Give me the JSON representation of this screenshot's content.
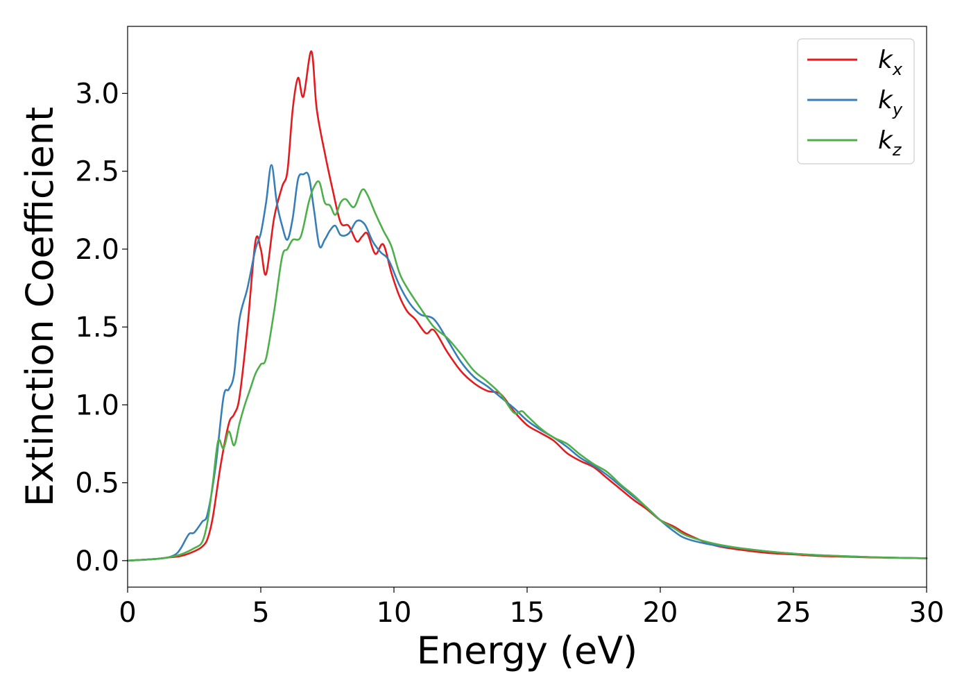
{
  "chart_data": {
    "type": "line",
    "xlabel": "Energy (eV)",
    "ylabel": "Extinction Coefficient",
    "xlim": [
      0,
      30
    ],
    "ylim": [
      -0.17,
      3.43
    ],
    "xticks": [
      "0",
      "5",
      "10",
      "15",
      "20",
      "25",
      "30"
    ],
    "xtick_values": [
      0,
      5,
      10,
      15,
      20,
      25,
      30
    ],
    "yticks": [
      "0.0",
      "0.5",
      "1.0",
      "1.5",
      "2.0",
      "2.5",
      "3.0"
    ],
    "ytick_values": [
      0,
      0.5,
      1.0,
      1.5,
      2.0,
      2.5,
      3.0
    ],
    "grid": false,
    "legend_position": "top-right",
    "series": [
      {
        "name": "k",
        "subscript": "x",
        "color": "#e41a1c",
        "x": [
          0,
          1,
          1.5,
          2.0,
          2.5,
          2.8,
          3.0,
          3.2,
          3.5,
          3.8,
          4.0,
          4.2,
          4.5,
          4.8,
          5.0,
          5.2,
          5.5,
          5.8,
          6.0,
          6.2,
          6.4,
          6.6,
          6.9,
          7.1,
          7.4,
          7.7,
          8.0,
          8.3,
          8.6,
          8.8,
          9.0,
          9.3,
          9.6,
          9.9,
          10.2,
          10.5,
          10.8,
          11.2,
          11.5,
          12.0,
          12.5,
          13.0,
          13.5,
          14.0,
          14.5,
          15.0,
          15.5,
          16.0,
          16.5,
          17.0,
          17.5,
          18.0,
          18.5,
          19.0,
          19.5,
          20.0,
          20.5,
          21.0,
          22.0,
          23.0,
          24.0,
          25.0,
          26.0,
          27.0,
          28.0,
          29.0,
          30.0
        ],
        "y": [
          0.0,
          0.01,
          0.02,
          0.03,
          0.06,
          0.09,
          0.14,
          0.28,
          0.62,
          0.88,
          0.94,
          1.05,
          1.5,
          2.05,
          2.0,
          1.84,
          2.2,
          2.4,
          2.5,
          2.9,
          3.1,
          2.98,
          3.27,
          2.9,
          2.62,
          2.38,
          2.17,
          2.15,
          2.05,
          2.08,
          2.1,
          1.97,
          2.03,
          1.85,
          1.7,
          1.6,
          1.55,
          1.46,
          1.48,
          1.34,
          1.22,
          1.14,
          1.09,
          1.07,
          0.96,
          0.87,
          0.82,
          0.77,
          0.69,
          0.64,
          0.6,
          0.53,
          0.46,
          0.39,
          0.33,
          0.26,
          0.22,
          0.17,
          0.1,
          0.07,
          0.05,
          0.04,
          0.03,
          0.025,
          0.02,
          0.018,
          0.015
        ]
      },
      {
        "name": "k",
        "subscript": "y",
        "color": "#377eb8",
        "x": [
          0,
          1,
          1.5,
          1.8,
          2.0,
          2.3,
          2.5,
          2.8,
          3.0,
          3.3,
          3.6,
          3.8,
          4.0,
          4.2,
          4.5,
          4.8,
          5.0,
          5.2,
          5.4,
          5.6,
          5.8,
          6.0,
          6.2,
          6.4,
          6.6,
          6.8,
          7.0,
          7.2,
          7.4,
          7.6,
          7.8,
          8.0,
          8.3,
          8.6,
          8.9,
          9.2,
          9.5,
          9.8,
          10.2,
          10.6,
          11.0,
          11.5,
          12.0,
          12.5,
          13.0,
          13.5,
          14.0,
          14.5,
          15.0,
          15.5,
          16.0,
          16.5,
          17.0,
          17.5,
          18.0,
          18.5,
          19.0,
          19.5,
          20.0,
          20.5,
          21.0,
          22.0,
          23.0,
          24.0,
          25.0,
          26.0,
          27.0,
          28.0,
          29.0,
          30.0
        ],
        "y": [
          0.0,
          0.01,
          0.02,
          0.04,
          0.08,
          0.17,
          0.18,
          0.25,
          0.3,
          0.6,
          1.05,
          1.1,
          1.2,
          1.55,
          1.75,
          2.0,
          2.1,
          2.3,
          2.54,
          2.3,
          2.15,
          2.06,
          2.2,
          2.45,
          2.48,
          2.47,
          2.25,
          2.02,
          2.06,
          2.12,
          2.15,
          2.09,
          2.1,
          2.18,
          2.16,
          2.05,
          1.98,
          1.93,
          1.77,
          1.65,
          1.58,
          1.55,
          1.42,
          1.28,
          1.18,
          1.12,
          1.05,
          0.98,
          0.9,
          0.84,
          0.79,
          0.73,
          0.66,
          0.61,
          0.55,
          0.48,
          0.41,
          0.34,
          0.26,
          0.19,
          0.14,
          0.1,
          0.08,
          0.06,
          0.045,
          0.035,
          0.028,
          0.022,
          0.018,
          0.015
        ]
      },
      {
        "name": "k",
        "subscript": "z",
        "color": "#4daf4a",
        "x": [
          0,
          1,
          1.5,
          2.0,
          2.5,
          2.8,
          3.0,
          3.2,
          3.4,
          3.6,
          3.8,
          4.0,
          4.2,
          4.4,
          4.6,
          4.8,
          5.0,
          5.2,
          5.5,
          5.8,
          6.0,
          6.2,
          6.5,
          6.8,
          7.0,
          7.2,
          7.4,
          7.6,
          7.8,
          8.0,
          8.2,
          8.5,
          8.8,
          9.0,
          9.3,
          9.6,
          9.9,
          10.2,
          10.5,
          11.0,
          11.5,
          12.0,
          12.5,
          13.0,
          13.5,
          14.0,
          14.5,
          14.8,
          15.0,
          15.5,
          16.0,
          16.5,
          17.0,
          17.5,
          18.0,
          18.5,
          19.0,
          19.5,
          20.0,
          20.5,
          21.0,
          22.0,
          23.0,
          24.0,
          25.0,
          26.0,
          27.0,
          28.0,
          29.0,
          30.0
        ],
        "y": [
          0.0,
          0.01,
          0.02,
          0.04,
          0.08,
          0.12,
          0.25,
          0.5,
          0.77,
          0.72,
          0.83,
          0.74,
          0.88,
          1.0,
          1.1,
          1.2,
          1.26,
          1.3,
          1.6,
          1.95,
          2.0,
          2.06,
          2.08,
          2.3,
          2.4,
          2.43,
          2.3,
          2.28,
          2.22,
          2.3,
          2.32,
          2.27,
          2.38,
          2.35,
          2.23,
          2.12,
          2.02,
          1.85,
          1.75,
          1.62,
          1.5,
          1.43,
          1.33,
          1.22,
          1.15,
          1.07,
          0.95,
          0.96,
          0.93,
          0.85,
          0.79,
          0.75,
          0.68,
          0.62,
          0.57,
          0.49,
          0.42,
          0.34,
          0.26,
          0.21,
          0.16,
          0.11,
          0.08,
          0.06,
          0.045,
          0.035,
          0.028,
          0.022,
          0.018,
          0.015
        ]
      }
    ]
  }
}
